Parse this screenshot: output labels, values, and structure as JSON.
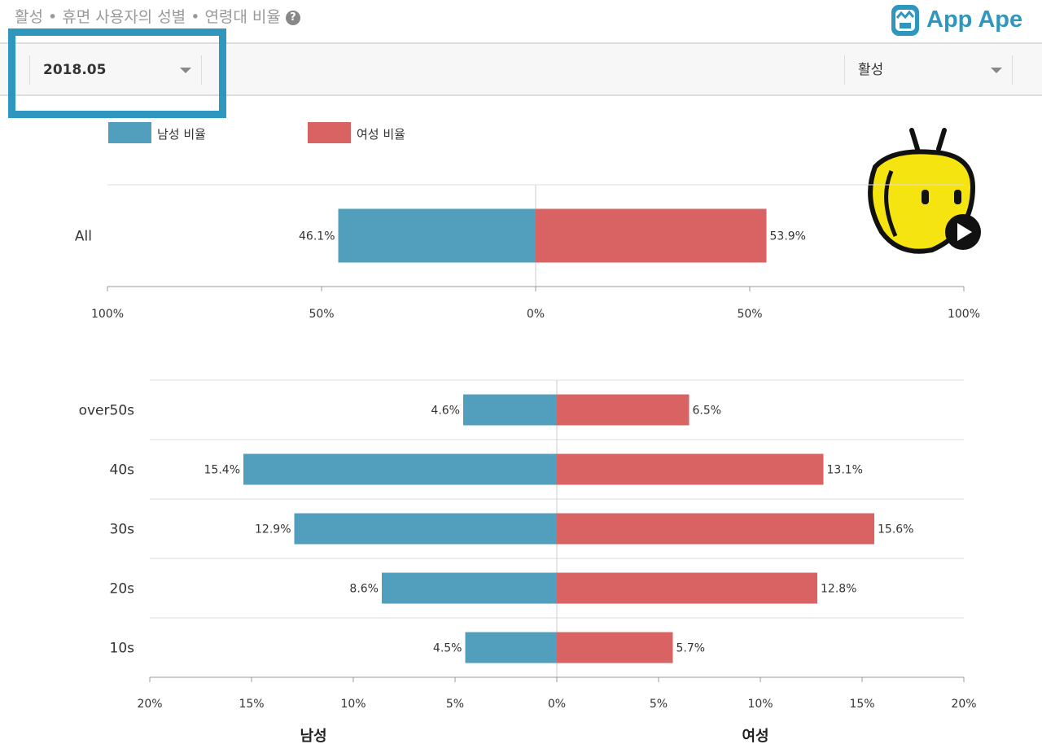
{
  "header": {
    "title": "활성 • 휴면 사용자의 성별 • 연령대 비율",
    "help_icon": "question-circle-icon",
    "logo_text": "App Ape"
  },
  "toolbar": {
    "date_select": "2018.05",
    "status_select": "활성"
  },
  "colors": {
    "male": "#529fbd",
    "female": "#d96363",
    "highlight": "#2f97bd"
  },
  "legend": {
    "male": "남성 비율",
    "female": "여성 비율"
  },
  "chart_data": [
    {
      "type": "bar",
      "orientation": "horizontal-diverging",
      "categories": [
        "All"
      ],
      "series": [
        {
          "name": "남성 비율",
          "values": [
            46.1
          ]
        },
        {
          "name": "여성 비율",
          "values": [
            53.9
          ]
        }
      ],
      "data_labels": {
        "male": [
          "46.1%"
        ],
        "female": [
          "53.9%"
        ]
      },
      "xlim": [
        -100,
        100
      ],
      "ticks": [
        "100%",
        "50%",
        "0%",
        "50%",
        "100%"
      ],
      "legend": "top-left"
    },
    {
      "type": "bar",
      "orientation": "horizontal-diverging",
      "categories": [
        "over50s",
        "40s",
        "30s",
        "20s",
        "10s"
      ],
      "series": [
        {
          "name": "남성",
          "values": [
            4.6,
            15.4,
            12.9,
            8.6,
            4.5
          ]
        },
        {
          "name": "여성",
          "values": [
            6.5,
            13.1,
            15.6,
            12.8,
            5.7
          ]
        }
      ],
      "data_labels": {
        "male": [
          "4.6%",
          "15.4%",
          "12.9%",
          "8.6%",
          "4.5%"
        ],
        "female": [
          "6.5%",
          "13.1%",
          "15.6%",
          "12.8%",
          "5.7%"
        ]
      },
      "xlim": [
        -20,
        20
      ],
      "ticks": [
        "20%",
        "15%",
        "10%",
        "5%",
        "0%",
        "5%",
        "10%",
        "15%",
        "20%"
      ],
      "xlabel_left": "남성",
      "xlabel_right": "여성"
    }
  ]
}
